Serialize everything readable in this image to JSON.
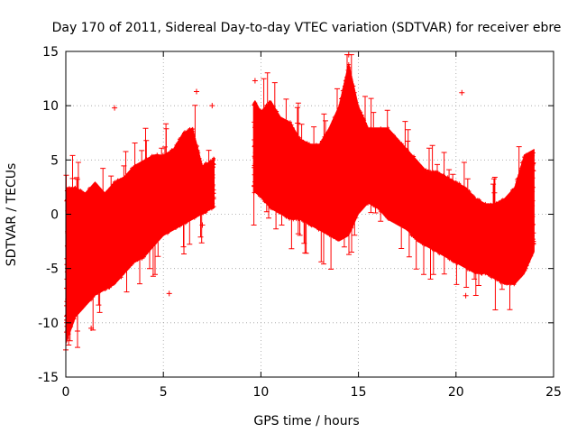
{
  "chart_data": {
    "type": "scatter",
    "title": "Day 170 of 2011, Sidereal Day-to-day VTEC variation (SDTVAR) for receiver ebre",
    "xlabel": "GPS time / hours",
    "ylabel": "SDTVAR / TECUs",
    "xlim": [
      0,
      25
    ],
    "ylim": [
      -15,
      15
    ],
    "xticks": [
      0,
      5,
      10,
      15,
      20,
      25
    ],
    "yticks": [
      -15,
      -10,
      -5,
      0,
      5,
      10,
      15
    ],
    "grid": true,
    "marker": "+",
    "color": "#ff0000",
    "gap_hours": [
      7.6,
      9.6
    ],
    "series": [
      {
        "name": "SDTVAR",
        "description_points": "dense point cloud; lower/upper envelope per hour",
        "x": [
          0.0,
          0.5,
          1.0,
          1.5,
          2.0,
          2.5,
          3.0,
          3.5,
          4.0,
          4.5,
          5.0,
          5.5,
          6.0,
          6.5,
          7.0,
          7.5,
          9.7,
          10.0,
          10.5,
          11.0,
          11.5,
          12.0,
          12.5,
          13.0,
          13.5,
          14.0,
          14.5,
          15.0,
          15.5,
          16.0,
          16.5,
          17.0,
          17.5,
          18.0,
          18.5,
          19.0,
          19.5,
          20.0,
          20.5,
          21.0,
          21.5,
          22.0,
          22.5,
          23.0,
          23.5,
          24.0
        ],
        "lower": [
          -12.0,
          -9.5,
          -8.5,
          -7.5,
          -7.0,
          -6.5,
          -5.5,
          -4.5,
          -4.0,
          -3.0,
          -2.0,
          -1.5,
          -1.0,
          -0.5,
          0.0,
          0.5,
          2.0,
          1.5,
          0.5,
          0.0,
          -0.5,
          -0.5,
          -1.0,
          -1.5,
          -2.0,
          -2.5,
          -2.0,
          0.0,
          1.0,
          0.5,
          -0.5,
          -1.0,
          -1.5,
          -2.5,
          -3.0,
          -3.5,
          -4.0,
          -4.5,
          -5.0,
          -5.5,
          -5.5,
          -6.0,
          -6.5,
          -6.5,
          -5.5,
          -3.5
        ],
        "upper": [
          2.5,
          2.5,
          2.0,
          3.0,
          2.0,
          3.0,
          3.5,
          4.5,
          5.0,
          5.5,
          5.5,
          6.0,
          7.5,
          8.0,
          4.5,
          5.0,
          10.5,
          9.5,
          10.5,
          9.0,
          8.5,
          7.0,
          6.5,
          6.5,
          8.0,
          10.0,
          14.0,
          10.0,
          8.0,
          8.0,
          8.0,
          7.0,
          6.0,
          5.0,
          4.0,
          4.0,
          3.5,
          3.0,
          2.5,
          1.5,
          1.0,
          1.0,
          1.5,
          2.5,
          5.5,
          6.0
        ],
        "outliers": [
          [
            2.5,
            9.8
          ],
          [
            20.3,
            11.2
          ],
          [
            14.5,
            14.7
          ],
          [
            6.7,
            11.3
          ],
          [
            0.0,
            -12.5
          ],
          [
            1.3,
            -10.5
          ],
          [
            5.3,
            -7.3
          ],
          [
            20.5,
            -7.5
          ],
          [
            7.0,
            -1.0
          ],
          [
            7.5,
            10.0
          ],
          [
            9.7,
            12.3
          ]
        ]
      }
    ]
  }
}
